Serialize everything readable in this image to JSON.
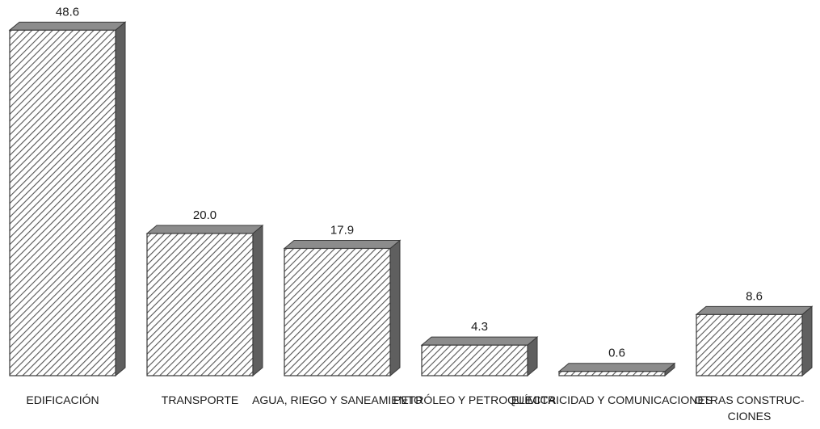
{
  "chart_data": {
    "type": "bar",
    "style": "3d-hatched",
    "categories": [
      [
        "EDIFICACIÓN"
      ],
      [
        "TRANSPORTE"
      ],
      [
        "AGUA, RIEGO Y SANEAMIENTO"
      ],
      [
        "PETRÓLEO Y PETROQUÍMICA"
      ],
      [
        "ELECTRICIDAD Y COMUNICACIONES"
      ],
      [
        "OTRAS CONSTRUC-",
        "CIONES"
      ]
    ],
    "values": [
      48.6,
      20.0,
      17.9,
      4.3,
      0.6,
      8.6
    ],
    "value_labels": [
      "48.6",
      "20.0",
      "17.9",
      "4.3",
      "0.6",
      "8.6"
    ],
    "ylim": [
      0,
      50
    ],
    "grid": false,
    "legend": "none",
    "colors": {
      "front_stroke": "#3a3a3a",
      "hatch": "#555555",
      "top_face": "#8c8c8c",
      "side_face": "#5f5f5f",
      "background": "#ffffff"
    }
  }
}
